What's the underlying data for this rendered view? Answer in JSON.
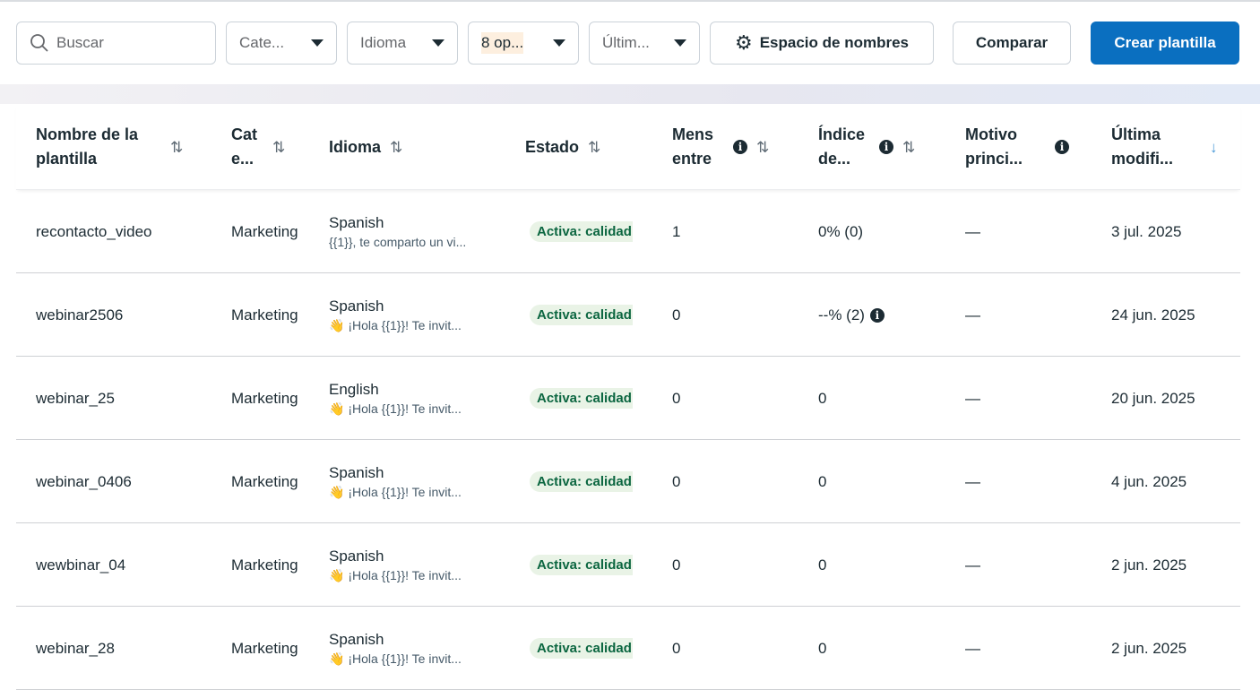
{
  "toolbar": {
    "search_placeholder": "Buscar",
    "filters": [
      "Cate...",
      "Idioma",
      "8 op...",
      "Últim..."
    ],
    "namespace_label": "Espacio de nombres",
    "compare_label": "Comparar",
    "create_label": "Crear plantilla"
  },
  "colors": {
    "primary": "#0a6fc0",
    "badge_bg": "#e9f3e6",
    "badge_text": "#0b6640",
    "highlight": "#fdefdf"
  },
  "columns": {
    "name": "Nombre de la plantilla",
    "category": "Cat e...",
    "language": "Idioma",
    "status": "Estado",
    "messages": "Mens entre",
    "index": "Índice de...",
    "reason": "Motivo princi...",
    "modified": "Última modifi..."
  },
  "rows": [
    {
      "name": "recontacto_video",
      "category": "Marketing",
      "language": "Spanish",
      "preview": "{{1}}, te comparto un vi...",
      "status": "Activa: calidad",
      "messages": "1",
      "index": "0% (0)",
      "index_info": false,
      "reason": "—",
      "modified": "3 jul. 2025"
    },
    {
      "name": "webinar2506",
      "category": "Marketing",
      "language": "Spanish",
      "preview": "👋 ¡Hola {{1}}! Te invit...",
      "status": "Activa: calidad",
      "messages": "0",
      "index": "--% (2)",
      "index_info": true,
      "reason": "—",
      "modified": "24 jun. 2025"
    },
    {
      "name": "webinar_25",
      "category": "Marketing",
      "language": "English",
      "preview": "👋 ¡Hola {{1}}! Te invit...",
      "status": "Activa: calidad",
      "messages": "0",
      "index": "0",
      "index_info": false,
      "reason": "—",
      "modified": "20 jun. 2025"
    },
    {
      "name": "webinar_0406",
      "category": "Marketing",
      "language": "Spanish",
      "preview": "👋 ¡Hola {{1}}! Te invit...",
      "status": "Activa: calidad",
      "messages": "0",
      "index": "0",
      "index_info": false,
      "reason": "—",
      "modified": "4 jun. 2025"
    },
    {
      "name": "wewbinar_04",
      "category": "Marketing",
      "language": "Spanish",
      "preview": "👋 ¡Hola {{1}}! Te invit...",
      "status": "Activa: calidad",
      "messages": "0",
      "index": "0",
      "index_info": false,
      "reason": "—",
      "modified": "2 jun. 2025"
    },
    {
      "name": "webinar_28",
      "category": "Marketing",
      "language": "Spanish",
      "preview": "👋 ¡Hola {{1}}! Te invit...",
      "status": "Activa: calidad",
      "messages": "0",
      "index": "0",
      "index_info": false,
      "reason": "—",
      "modified": "2 jun. 2025"
    }
  ]
}
